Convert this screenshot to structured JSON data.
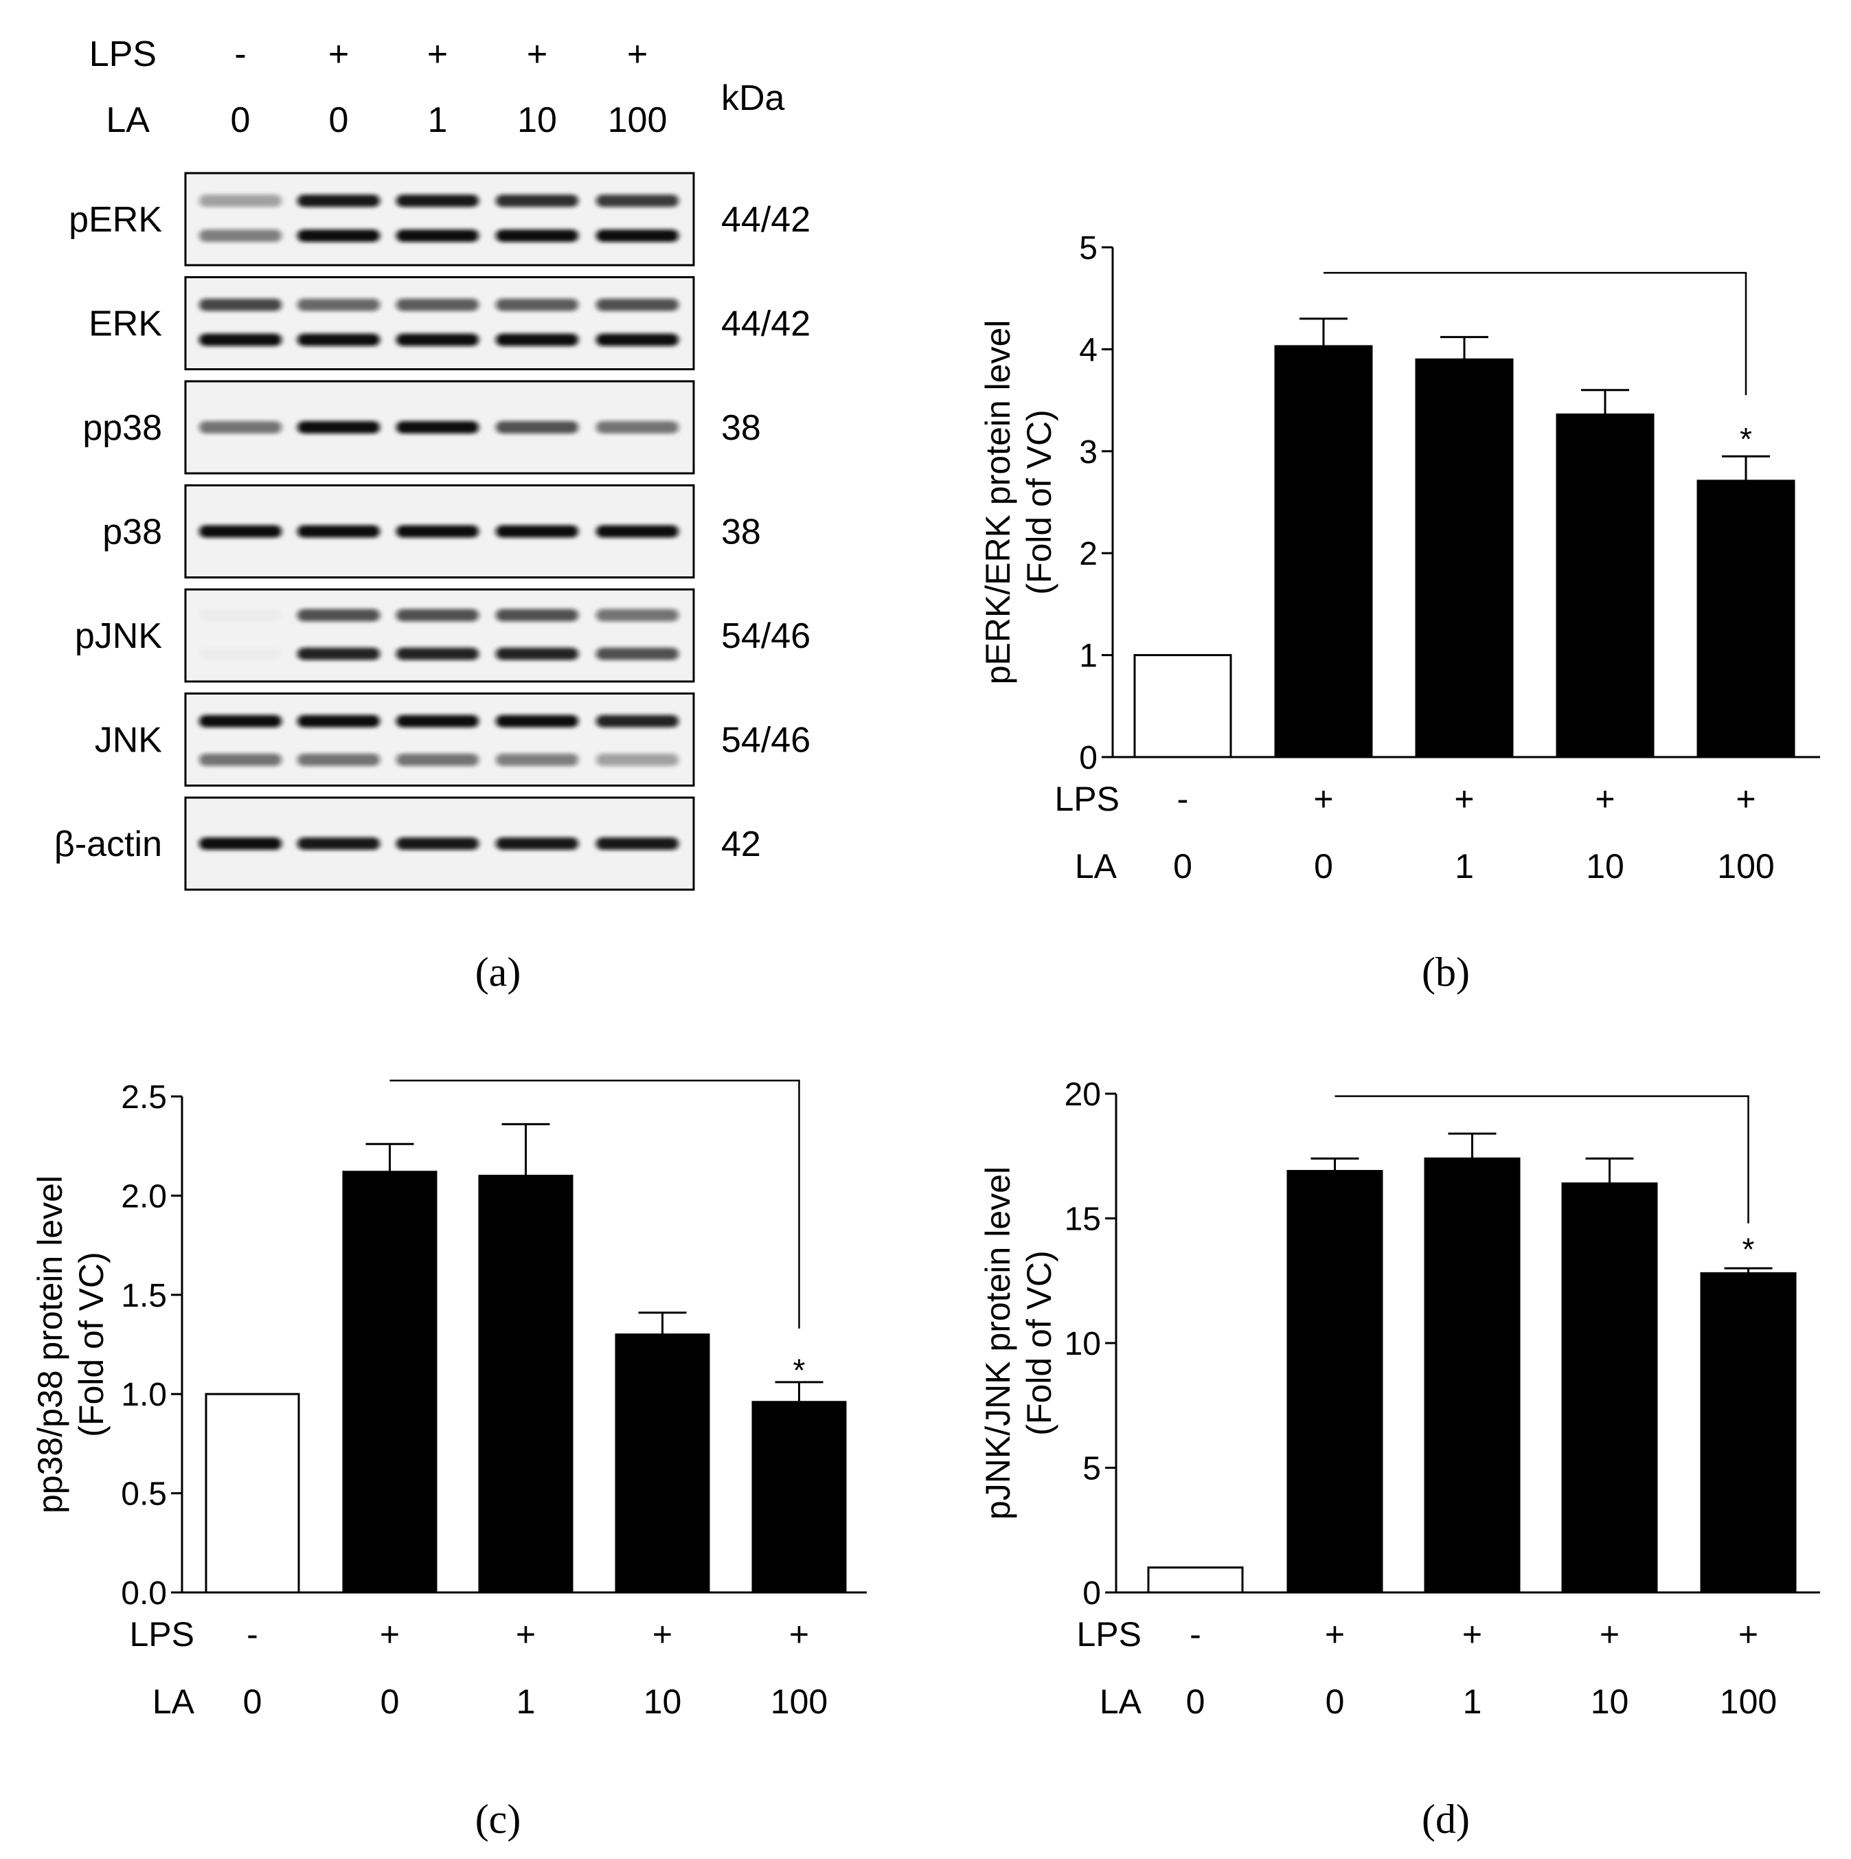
{
  "western_blot": {
    "panel_label": "(a)",
    "row_headers": [
      "LPS",
      "LA"
    ],
    "lanes": [
      {
        "LPS": "-",
        "LA": "0"
      },
      {
        "LPS": "+",
        "LA": "0"
      },
      {
        "LPS": "+",
        "LA": "1"
      },
      {
        "LPS": "+",
        "LA": "10"
      },
      {
        "LPS": "+",
        "LA": "100"
      }
    ],
    "kda_header": "kDa",
    "blots": [
      {
        "protein": "pERK",
        "kda": "44/42",
        "bands": [
          {
            "offset": -0.2,
            "intensity": [
              0.35,
              0.95,
              0.95,
              0.85,
              0.8
            ]
          },
          {
            "offset": 0.18,
            "intensity": [
              0.5,
              1.0,
              1.0,
              1.0,
              1.0
            ]
          }
        ]
      },
      {
        "protein": "ERK",
        "kda": "44/42",
        "bands": [
          {
            "offset": -0.2,
            "intensity": [
              0.75,
              0.6,
              0.65,
              0.65,
              0.7
            ]
          },
          {
            "offset": 0.18,
            "intensity": [
              1.0,
              1.0,
              1.0,
              1.0,
              1.0
            ]
          }
        ]
      },
      {
        "protein": "pp38",
        "kda": "38",
        "bands": [
          {
            "offset": 0,
            "intensity": [
              0.55,
              1.0,
              1.0,
              0.7,
              0.55
            ]
          }
        ]
      },
      {
        "protein": "p38",
        "kda": "38",
        "bands": [
          {
            "offset": 0,
            "intensity": [
              1.0,
              1.0,
              1.0,
              1.0,
              1.0
            ]
          }
        ]
      },
      {
        "protein": "pJNK",
        "kda": "54/46",
        "bands": [
          {
            "offset": -0.22,
            "intensity": [
              0.02,
              0.7,
              0.7,
              0.7,
              0.55
            ]
          },
          {
            "offset": 0.2,
            "intensity": [
              0.02,
              0.9,
              0.9,
              0.9,
              0.7
            ]
          }
        ]
      },
      {
        "protein": "JNK",
        "kda": "54/46",
        "bands": [
          {
            "offset": -0.2,
            "intensity": [
              1.0,
              1.0,
              1.0,
              1.0,
              0.9
            ]
          },
          {
            "offset": 0.22,
            "intensity": [
              0.55,
              0.55,
              0.55,
              0.5,
              0.35
            ]
          }
        ]
      },
      {
        "protein": "β-actin",
        "kda": "42",
        "bands": [
          {
            "offset": 0,
            "intensity": [
              1.0,
              0.95,
              0.95,
              0.95,
              0.95
            ]
          }
        ]
      }
    ]
  },
  "chart_data": [
    {
      "panel_label": "(b)",
      "type": "bar",
      "ylabel_lines": [
        "pERK/ERK protein level",
        "(Fold of VC)"
      ],
      "xlabel": "",
      "row_headers": [
        "LPS",
        "LA"
      ],
      "categories": [
        {
          "LPS": "-",
          "LA": "0"
        },
        {
          "LPS": "+",
          "LA": "0"
        },
        {
          "LPS": "+",
          "LA": "1"
        },
        {
          "LPS": "+",
          "LA": "10"
        },
        {
          "LPS": "+",
          "LA": "100"
        }
      ],
      "values": [
        1.0,
        4.03,
        3.9,
        3.36,
        2.71
      ],
      "errors": [
        0,
        0.27,
        0.22,
        0.24,
        0.24
      ],
      "fills": [
        "#ffffff",
        "#000000",
        "#000000",
        "#000000",
        "#000000"
      ],
      "ylim": [
        0,
        5
      ],
      "yticks": [
        0,
        1,
        2,
        3,
        4,
        5
      ],
      "ytick_labels": [
        "0",
        "1",
        "2",
        "3",
        "4",
        "5"
      ],
      "significance": {
        "from": 1,
        "to": 4,
        "y": 4.75,
        "drop_to": 3.55,
        "marker": "*",
        "marker_y": 3.08
      }
    },
    {
      "panel_label": "(c)",
      "type": "bar",
      "ylabel_lines": [
        "pp38/p38 protein level",
        "(Fold of VC)"
      ],
      "xlabel": "",
      "row_headers": [
        "LPS",
        "LA"
      ],
      "categories": [
        {
          "LPS": "-",
          "LA": "0"
        },
        {
          "LPS": "+",
          "LA": "0"
        },
        {
          "LPS": "+",
          "LA": "1"
        },
        {
          "LPS": "+",
          "LA": "10"
        },
        {
          "LPS": "+",
          "LA": "100"
        }
      ],
      "values": [
        1.0,
        2.12,
        2.1,
        1.3,
        0.96
      ],
      "errors": [
        0,
        0.14,
        0.26,
        0.11,
        0.1
      ],
      "fills": [
        "#ffffff",
        "#000000",
        "#000000",
        "#000000",
        "#000000"
      ],
      "ylim": [
        0,
        2.5
      ],
      "yticks": [
        0,
        0.5,
        1.0,
        1.5,
        2.0,
        2.5
      ],
      "ytick_labels": [
        "0.0",
        "0.5",
        "1.0",
        "1.5",
        "2.0",
        "2.5"
      ],
      "significance": {
        "from": 1,
        "to": 4,
        "y": 2.58,
        "drop_to": 1.33,
        "marker": "*",
        "marker_y": 1.1
      }
    },
    {
      "panel_label": "(d)",
      "type": "bar",
      "ylabel_lines": [
        "pJNK/JNK protein level",
        "(Fold of VC)"
      ],
      "xlabel": "",
      "row_headers": [
        "LPS",
        "LA"
      ],
      "categories": [
        {
          "LPS": "-",
          "LA": "0"
        },
        {
          "LPS": "+",
          "LA": "0"
        },
        {
          "LPS": "+",
          "LA": "1"
        },
        {
          "LPS": "+",
          "LA": "10"
        },
        {
          "LPS": "+",
          "LA": "100"
        }
      ],
      "values": [
        1.0,
        16.9,
        17.4,
        16.4,
        12.8
      ],
      "errors": [
        0,
        0.5,
        1.0,
        1.0,
        0.2
      ],
      "fills": [
        "#ffffff",
        "#000000",
        "#000000",
        "#000000",
        "#000000"
      ],
      "ylim": [
        0,
        20
      ],
      "yticks": [
        0,
        5,
        10,
        15,
        20
      ],
      "ytick_labels": [
        "0",
        "5",
        "10",
        "15",
        "20"
      ],
      "significance": {
        "from": 1,
        "to": 4,
        "y": 19.9,
        "drop_to": 14.8,
        "marker": "*",
        "marker_y": 13.6
      }
    }
  ]
}
